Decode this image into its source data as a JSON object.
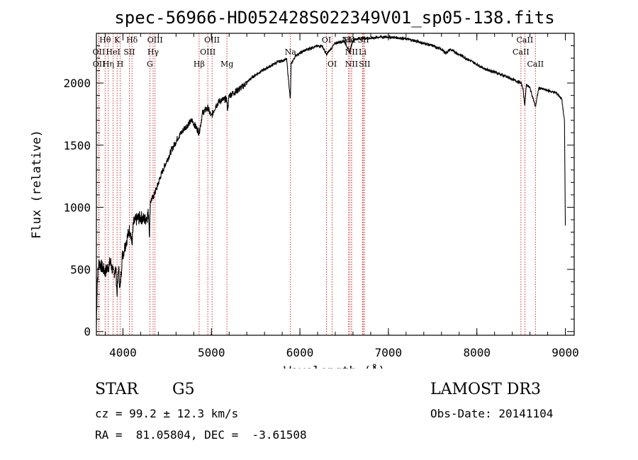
{
  "chart_data": {
    "type": "line",
    "title": "spec-56966-HD052428S022349V01_sp05-138.fits",
    "xlabel": "Wavelength (Å)",
    "ylabel": "Flux (relative)",
    "xlim": [
      3700,
      9100
    ],
    "ylim": [
      -30,
      2400
    ],
    "xticks": [
      4000,
      5000,
      6000,
      7000,
      8000,
      9000
    ],
    "yticks": [
      0,
      500,
      1000,
      1500,
      2000
    ],
    "xtick_labels": [
      "4000",
      "5000",
      "6000",
      "7000",
      "8000",
      "9000"
    ],
    "ytick_labels": [
      "0",
      "500",
      "1000",
      "1500",
      "2000"
    ],
    "spectrum": {
      "x": [
        3700,
        3710,
        3730,
        3760,
        3800,
        3830,
        3860,
        3890,
        3920,
        3933,
        3950,
        3968,
        3990,
        4020,
        4050,
        4080,
        4101,
        4120,
        4150,
        4200,
        4250,
        4290,
        4300,
        4310,
        4340,
        4380,
        4420,
        4480,
        4550,
        4620,
        4700,
        4780,
        4861,
        4900,
        4960,
        5000,
        5050,
        5100,
        5170,
        5183,
        5200,
        5270,
        5350,
        5450,
        5550,
        5650,
        5750,
        5850,
        5890,
        5893,
        5900,
        5950,
        6050,
        6150,
        6250,
        6300,
        6400,
        6500,
        6563,
        6600,
        6700,
        6800,
        6900,
        7000,
        7100,
        7200,
        7300,
        7400,
        7500,
        7600,
        7650,
        7700,
        7800,
        7900,
        8000,
        8100,
        8200,
        8300,
        8400,
        8498,
        8520,
        8542,
        8560,
        8600,
        8662,
        8700,
        8800,
        8900,
        8960,
        8990,
        9000
      ],
      "y": [
        50,
        420,
        560,
        520,
        480,
        520,
        560,
        470,
        500,
        300,
        520,
        330,
        600,
        680,
        760,
        830,
        700,
        870,
        900,
        920,
        900,
        950,
        780,
        1050,
        1080,
        1150,
        1240,
        1350,
        1460,
        1560,
        1640,
        1700,
        1600,
        1760,
        1800,
        1730,
        1820,
        1860,
        1870,
        1790,
        1900,
        1930,
        1970,
        2040,
        2090,
        2130,
        2170,
        2190,
        1880,
        1890,
        2150,
        2220,
        2260,
        2290,
        2300,
        2230,
        2320,
        2340,
        2250,
        2350,
        2360,
        2360,
        2370,
        2370,
        2365,
        2355,
        2340,
        2320,
        2300,
        2270,
        2240,
        2270,
        2230,
        2190,
        2150,
        2110,
        2090,
        2060,
        2030,
        2000,
        1960,
        1820,
        1990,
        1960,
        1810,
        1960,
        1940,
        1920,
        1870,
        1690,
        850
      ]
    },
    "line_markers": [
      {
        "name": "Hθ",
        "wl": 3798,
        "row": 0
      },
      {
        "name": "OII",
        "wl": 3727,
        "row": 1
      },
      {
        "name": "OII",
        "wl": 3729,
        "row": 2
      },
      {
        "name": "Hη",
        "wl": 3835,
        "row": 2
      },
      {
        "name": "K",
        "wl": 3934,
        "row": 0
      },
      {
        "name": "HeI",
        "wl": 3889,
        "row": 1
      },
      {
        "name": "H",
        "wl": 3969,
        "row": 2
      },
      {
        "name": "SII",
        "wl": 4072,
        "row": 1
      },
      {
        "name": "Hδ",
        "wl": 4102,
        "row": 0
      },
      {
        "name": "OIII",
        "wl": 4363,
        "row": 0
      },
      {
        "name": "Hγ",
        "wl": 4341,
        "row": 1
      },
      {
        "name": "G",
        "wl": 4304,
        "row": 2
      },
      {
        "name": "Hβ",
        "wl": 4861,
        "row": 2
      },
      {
        "name": "OIII",
        "wl": 5007,
        "row": 0
      },
      {
        "name": "OIII",
        "wl": 4959,
        "row": 1
      },
      {
        "name": "Mg",
        "wl": 5175,
        "row": 2
      },
      {
        "name": "Na",
        "wl": 5893,
        "row": 1
      },
      {
        "name": "OI",
        "wl": 6300,
        "row": 0
      },
      {
        "name": "OI",
        "wl": 6364,
        "row": 2
      },
      {
        "name": "NII",
        "wl": 6548,
        "row": 0
      },
      {
        "name": "Hα",
        "wl": 6563,
        "row": 0
      },
      {
        "name": "NII",
        "wl": 6584,
        "row": 1
      },
      {
        "name": "NII",
        "wl": 6584,
        "row": 2
      },
      {
        "name": "SII",
        "wl": 6717,
        "row": 0
      },
      {
        "name": "SII",
        "wl": 6731,
        "row": 2
      },
      {
        "name": "Li",
        "wl": 6708,
        "row": 1
      },
      {
        "name": "CaII",
        "wl": 8498,
        "row": 1
      },
      {
        "name": "CaII",
        "wl": 8542,
        "row": 0
      },
      {
        "name": "CaII",
        "wl": 8662,
        "row": 2
      }
    ]
  },
  "info": {
    "object_class": "STAR",
    "subclass": "G5",
    "survey": "LAMOST DR3",
    "cz": "cz = 99.2 ± 12.3 km/s",
    "obs_date": "Obs-Date: 20141104",
    "coords": "RA =  81.05804, DEC =  -3.61508"
  },
  "colors": {
    "line_marker": "#cc0000",
    "spectrum": "#000000"
  }
}
